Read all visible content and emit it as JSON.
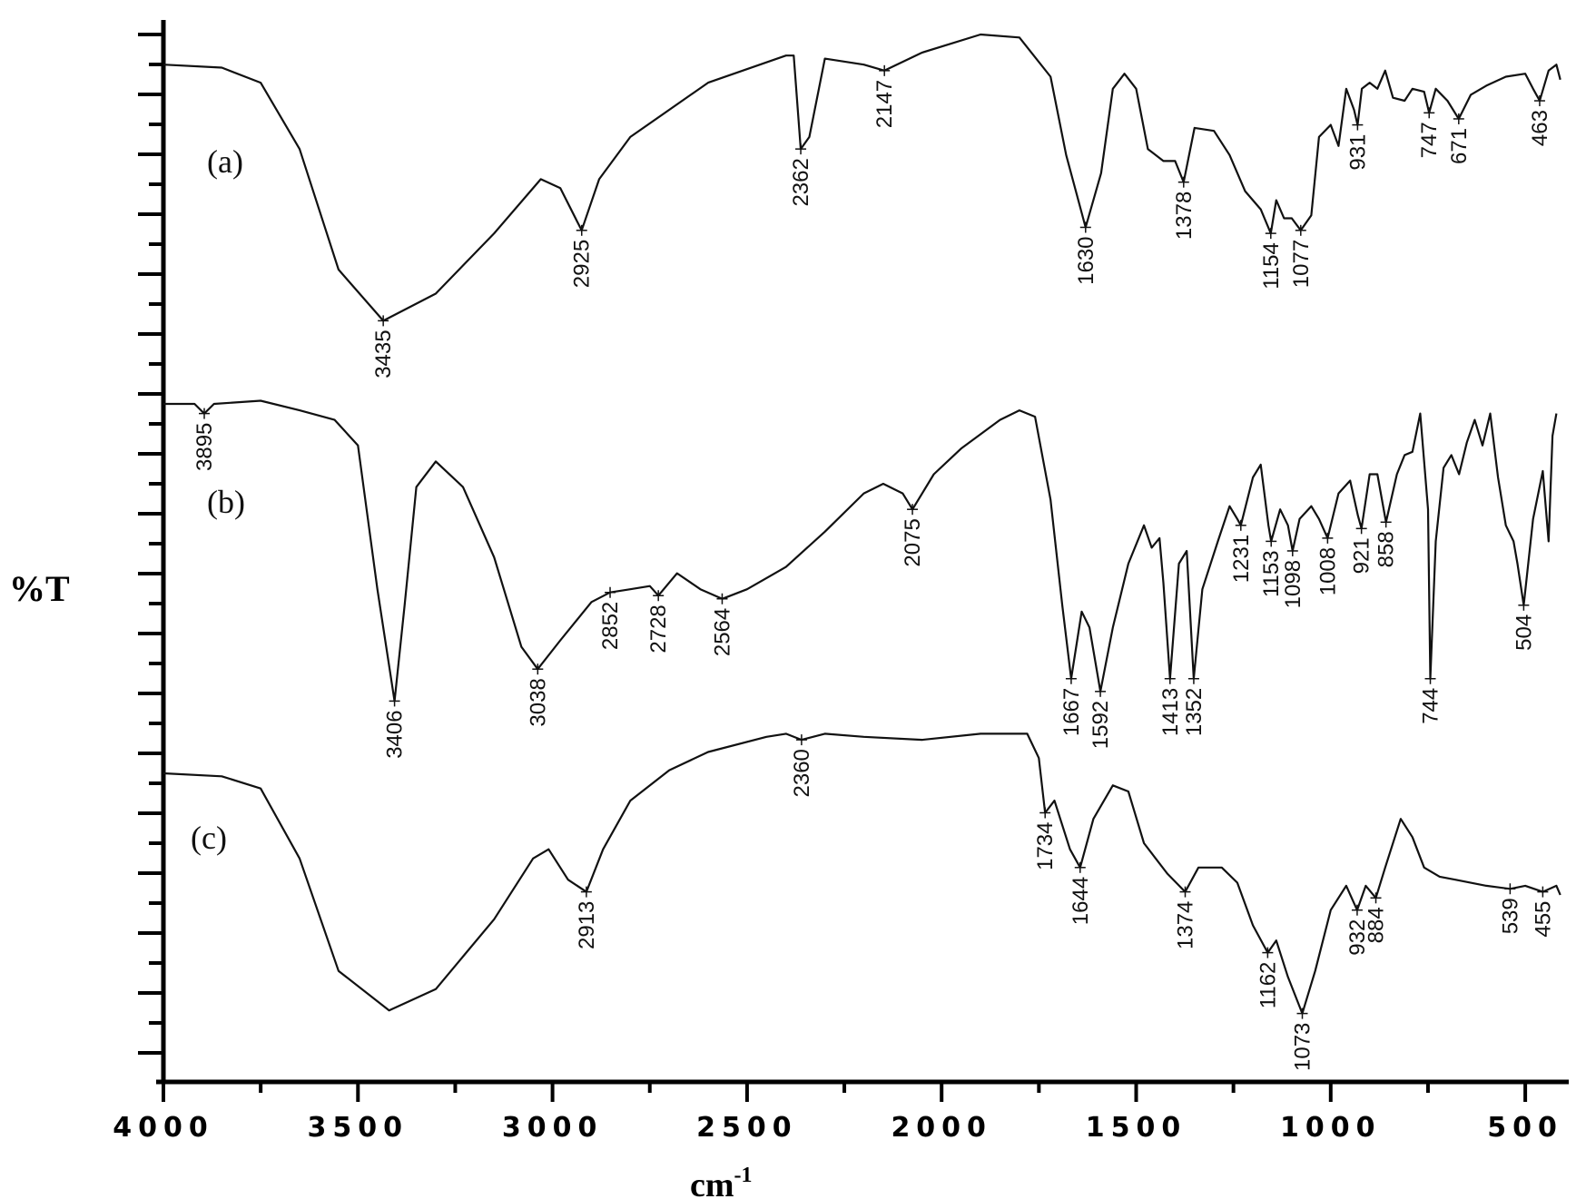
{
  "chart_data": {
    "type": "line",
    "title": "",
    "xlabel": "cm-1",
    "ylabel": "%T",
    "x_reversed": true,
    "xlim": [
      4000,
      400
    ],
    "x_ticks": [
      4000,
      3500,
      3000,
      2500,
      2000,
      1500,
      1000,
      500
    ],
    "grid": false,
    "legend": "inline labels (a), (b), (c)",
    "series": [
      {
        "name": "(a)",
        "peaks": [
          3435,
          2925,
          2362,
          2147,
          1630,
          1378,
          1154,
          1077,
          931,
          747,
          671,
          463
        ],
        "points": [
          [
            4000,
            0.9
          ],
          [
            3850,
            0.89
          ],
          [
            3750,
            0.84
          ],
          [
            3650,
            0.62
          ],
          [
            3550,
            0.22
          ],
          [
            3435,
            0.05
          ],
          [
            3300,
            0.14
          ],
          [
            3150,
            0.34
          ],
          [
            3030,
            0.52
          ],
          [
            2980,
            0.49
          ],
          [
            2925,
            0.35
          ],
          [
            2880,
            0.52
          ],
          [
            2800,
            0.66
          ],
          [
            2600,
            0.84
          ],
          [
            2400,
            0.93
          ],
          [
            2380,
            0.93
          ],
          [
            2362,
            0.62
          ],
          [
            2340,
            0.66
          ],
          [
            2300,
            0.92
          ],
          [
            2200,
            0.9
          ],
          [
            2147,
            0.88
          ],
          [
            2050,
            0.94
          ],
          [
            1900,
            1.0
          ],
          [
            1800,
            0.99
          ],
          [
            1720,
            0.86
          ],
          [
            1680,
            0.6
          ],
          [
            1630,
            0.36
          ],
          [
            1590,
            0.54
          ],
          [
            1560,
            0.82
          ],
          [
            1530,
            0.87
          ],
          [
            1500,
            0.82
          ],
          [
            1470,
            0.62
          ],
          [
            1430,
            0.58
          ],
          [
            1400,
            0.58
          ],
          [
            1378,
            0.51
          ],
          [
            1350,
            0.69
          ],
          [
            1300,
            0.68
          ],
          [
            1260,
            0.6
          ],
          [
            1220,
            0.48
          ],
          [
            1180,
            0.42
          ],
          [
            1154,
            0.34
          ],
          [
            1140,
            0.45
          ],
          [
            1120,
            0.39
          ],
          [
            1100,
            0.39
          ],
          [
            1077,
            0.35
          ],
          [
            1050,
            0.4
          ],
          [
            1030,
            0.66
          ],
          [
            1000,
            0.7
          ],
          [
            980,
            0.63
          ],
          [
            960,
            0.82
          ],
          [
            940,
            0.75
          ],
          [
            931,
            0.7
          ],
          [
            920,
            0.82
          ],
          [
            900,
            0.84
          ],
          [
            880,
            0.82
          ],
          [
            860,
            0.88
          ],
          [
            840,
            0.79
          ],
          [
            810,
            0.78
          ],
          [
            790,
            0.82
          ],
          [
            760,
            0.81
          ],
          [
            747,
            0.74
          ],
          [
            730,
            0.82
          ],
          [
            700,
            0.78
          ],
          [
            671,
            0.72
          ],
          [
            640,
            0.8
          ],
          [
            600,
            0.83
          ],
          [
            550,
            0.86
          ],
          [
            500,
            0.87
          ],
          [
            480,
            0.82
          ],
          [
            463,
            0.78
          ],
          [
            440,
            0.88
          ],
          [
            420,
            0.9
          ],
          [
            410,
            0.85
          ]
        ]
      },
      {
        "name": "(b)",
        "peaks": [
          3895,
          3406,
          3038,
          2852,
          2728,
          2564,
          2075,
          1667,
          1592,
          1413,
          1352,
          1231,
          1153,
          1098,
          1008,
          921,
          858,
          744,
          504
        ],
        "points": [
          [
            4000,
            0.98
          ],
          [
            3920,
            0.98
          ],
          [
            3895,
            0.95
          ],
          [
            3870,
            0.98
          ],
          [
            3750,
            0.99
          ],
          [
            3650,
            0.96
          ],
          [
            3560,
            0.93
          ],
          [
            3500,
            0.85
          ],
          [
            3450,
            0.4
          ],
          [
            3406,
            0.05
          ],
          [
            3380,
            0.35
          ],
          [
            3350,
            0.72
          ],
          [
            3300,
            0.8
          ],
          [
            3230,
            0.72
          ],
          [
            3150,
            0.5
          ],
          [
            3080,
            0.22
          ],
          [
            3038,
            0.15
          ],
          [
            2980,
            0.24
          ],
          [
            2900,
            0.36
          ],
          [
            2852,
            0.39
          ],
          [
            2800,
            0.4
          ],
          [
            2750,
            0.41
          ],
          [
            2728,
            0.38
          ],
          [
            2680,
            0.45
          ],
          [
            2620,
            0.4
          ],
          [
            2564,
            0.37
          ],
          [
            2500,
            0.4
          ],
          [
            2400,
            0.47
          ],
          [
            2300,
            0.58
          ],
          [
            2200,
            0.7
          ],
          [
            2150,
            0.73
          ],
          [
            2100,
            0.7
          ],
          [
            2075,
            0.65
          ],
          [
            2020,
            0.76
          ],
          [
            1950,
            0.84
          ],
          [
            1850,
            0.93
          ],
          [
            1800,
            0.96
          ],
          [
            1760,
            0.94
          ],
          [
            1720,
            0.68
          ],
          [
            1690,
            0.35
          ],
          [
            1667,
            0.12
          ],
          [
            1640,
            0.33
          ],
          [
            1620,
            0.28
          ],
          [
            1592,
            0.08
          ],
          [
            1560,
            0.28
          ],
          [
            1520,
            0.48
          ],
          [
            1480,
            0.6
          ],
          [
            1460,
            0.53
          ],
          [
            1440,
            0.56
          ],
          [
            1430,
            0.42
          ],
          [
            1413,
            0.12
          ],
          [
            1390,
            0.48
          ],
          [
            1370,
            0.52
          ],
          [
            1352,
            0.12
          ],
          [
            1330,
            0.4
          ],
          [
            1290,
            0.55
          ],
          [
            1260,
            0.66
          ],
          [
            1240,
            0.62
          ],
          [
            1231,
            0.6
          ],
          [
            1200,
            0.75
          ],
          [
            1180,
            0.79
          ],
          [
            1160,
            0.6
          ],
          [
            1153,
            0.55
          ],
          [
            1130,
            0.65
          ],
          [
            1110,
            0.6
          ],
          [
            1098,
            0.52
          ],
          [
            1080,
            0.62
          ],
          [
            1050,
            0.66
          ],
          [
            1030,
            0.62
          ],
          [
            1008,
            0.56
          ],
          [
            980,
            0.7
          ],
          [
            950,
            0.74
          ],
          [
            930,
            0.63
          ],
          [
            921,
            0.59
          ],
          [
            900,
            0.76
          ],
          [
            880,
            0.76
          ],
          [
            858,
            0.61
          ],
          [
            830,
            0.76
          ],
          [
            810,
            0.82
          ],
          [
            790,
            0.83
          ],
          [
            770,
            0.95
          ],
          [
            750,
            0.65
          ],
          [
            744,
            0.12
          ],
          [
            730,
            0.55
          ],
          [
            710,
            0.78
          ],
          [
            690,
            0.82
          ],
          [
            670,
            0.76
          ],
          [
            650,
            0.86
          ],
          [
            630,
            0.93
          ],
          [
            610,
            0.85
          ],
          [
            590,
            0.95
          ],
          [
            570,
            0.75
          ],
          [
            550,
            0.6
          ],
          [
            530,
            0.55
          ],
          [
            520,
            0.48
          ],
          [
            504,
            0.35
          ],
          [
            480,
            0.62
          ],
          [
            470,
            0.68
          ],
          [
            455,
            0.77
          ],
          [
            440,
            0.55
          ],
          [
            430,
            0.88
          ],
          [
            420,
            0.95
          ]
        ]
      },
      {
        "name": "(c)",
        "peaks": [
          2913,
          2360,
          1734,
          1644,
          1374,
          1162,
          1073,
          932,
          884,
          539,
          455
        ],
        "points": [
          [
            4000,
            0.83
          ],
          [
            3850,
            0.82
          ],
          [
            3750,
            0.78
          ],
          [
            3650,
            0.55
          ],
          [
            3550,
            0.18
          ],
          [
            3420,
            0.05
          ],
          [
            3300,
            0.12
          ],
          [
            3150,
            0.35
          ],
          [
            3050,
            0.55
          ],
          [
            3010,
            0.58
          ],
          [
            2960,
            0.48
          ],
          [
            2913,
            0.44
          ],
          [
            2870,
            0.58
          ],
          [
            2800,
            0.74
          ],
          [
            2700,
            0.84
          ],
          [
            2600,
            0.9
          ],
          [
            2450,
            0.95
          ],
          [
            2400,
            0.96
          ],
          [
            2360,
            0.94
          ],
          [
            2300,
            0.96
          ],
          [
            2200,
            0.95
          ],
          [
            2050,
            0.94
          ],
          [
            1900,
            0.96
          ],
          [
            1780,
            0.96
          ],
          [
            1750,
            0.88
          ],
          [
            1734,
            0.7
          ],
          [
            1710,
            0.74
          ],
          [
            1670,
            0.58
          ],
          [
            1644,
            0.52
          ],
          [
            1610,
            0.68
          ],
          [
            1560,
            0.79
          ],
          [
            1520,
            0.77
          ],
          [
            1480,
            0.6
          ],
          [
            1420,
            0.5
          ],
          [
            1374,
            0.44
          ],
          [
            1340,
            0.52
          ],
          [
            1280,
            0.52
          ],
          [
            1240,
            0.47
          ],
          [
            1200,
            0.33
          ],
          [
            1162,
            0.24
          ],
          [
            1140,
            0.28
          ],
          [
            1110,
            0.16
          ],
          [
            1073,
            0.04
          ],
          [
            1040,
            0.18
          ],
          [
            1000,
            0.38
          ],
          [
            960,
            0.46
          ],
          [
            932,
            0.38
          ],
          [
            910,
            0.46
          ],
          [
            884,
            0.42
          ],
          [
            860,
            0.52
          ],
          [
            820,
            0.68
          ],
          [
            790,
            0.62
          ],
          [
            760,
            0.52
          ],
          [
            720,
            0.49
          ],
          [
            680,
            0.48
          ],
          [
            600,
            0.46
          ],
          [
            539,
            0.45
          ],
          [
            500,
            0.46
          ],
          [
            455,
            0.44
          ],
          [
            420,
            0.46
          ],
          [
            410,
            0.43
          ]
        ]
      }
    ]
  },
  "labels": {
    "ylabel": "%T",
    "xlabel": "cm",
    "xlabel_sup": "-1",
    "series_a": "(a)",
    "series_b": "(b)",
    "series_c": "(c)",
    "ticks": [
      "4000",
      "3500",
      "3000",
      "2500",
      "2000",
      "1500",
      "1000",
      "500"
    ]
  }
}
